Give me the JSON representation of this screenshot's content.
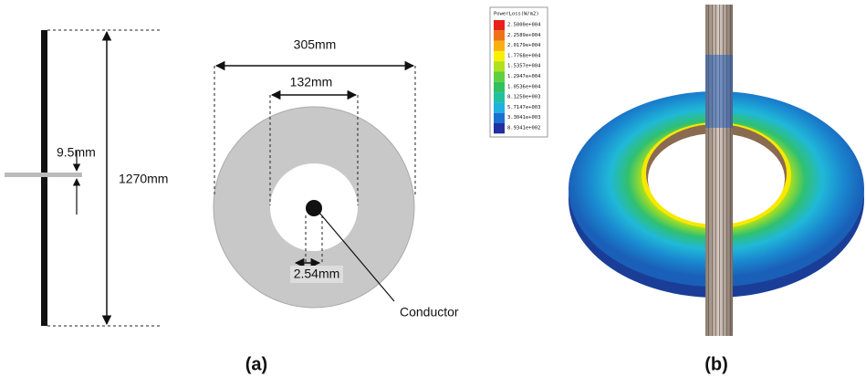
{
  "side_view": {
    "height": "1270mm",
    "thickness": "9.5mm"
  },
  "top_view": {
    "outer_diameter": "305mm",
    "inner_diameter": "132mm",
    "conductor_diameter": "2.54mm",
    "conductor_label": "Conductor"
  },
  "legend": {
    "title": "PowerLoss(W/m2)",
    "items": [
      {
        "label": "2.5000e+004",
        "color": "#e8201a"
      },
      {
        "label": "2.2589e+004",
        "color": "#f07018"
      },
      {
        "label": "2.0179e+004",
        "color": "#f8b010"
      },
      {
        "label": "1.7768e+004",
        "color": "#f8f000"
      },
      {
        "label": "1.5357e+004",
        "color": "#b0e020"
      },
      {
        "label": "1.2947e+004",
        "color": "#60d040"
      },
      {
        "label": "1.0536e+004",
        "color": "#30c060"
      },
      {
        "label": "8.1250e+003",
        "color": "#20c0a0"
      },
      {
        "label": "5.7147e+003",
        "color": "#20b0e0"
      },
      {
        "label": "3.3041e+003",
        "color": "#1a70d0"
      },
      {
        "label": "8.9341e+002",
        "color": "#2030a0"
      }
    ]
  },
  "captions": [
    "(a)",
    "(b)"
  ]
}
